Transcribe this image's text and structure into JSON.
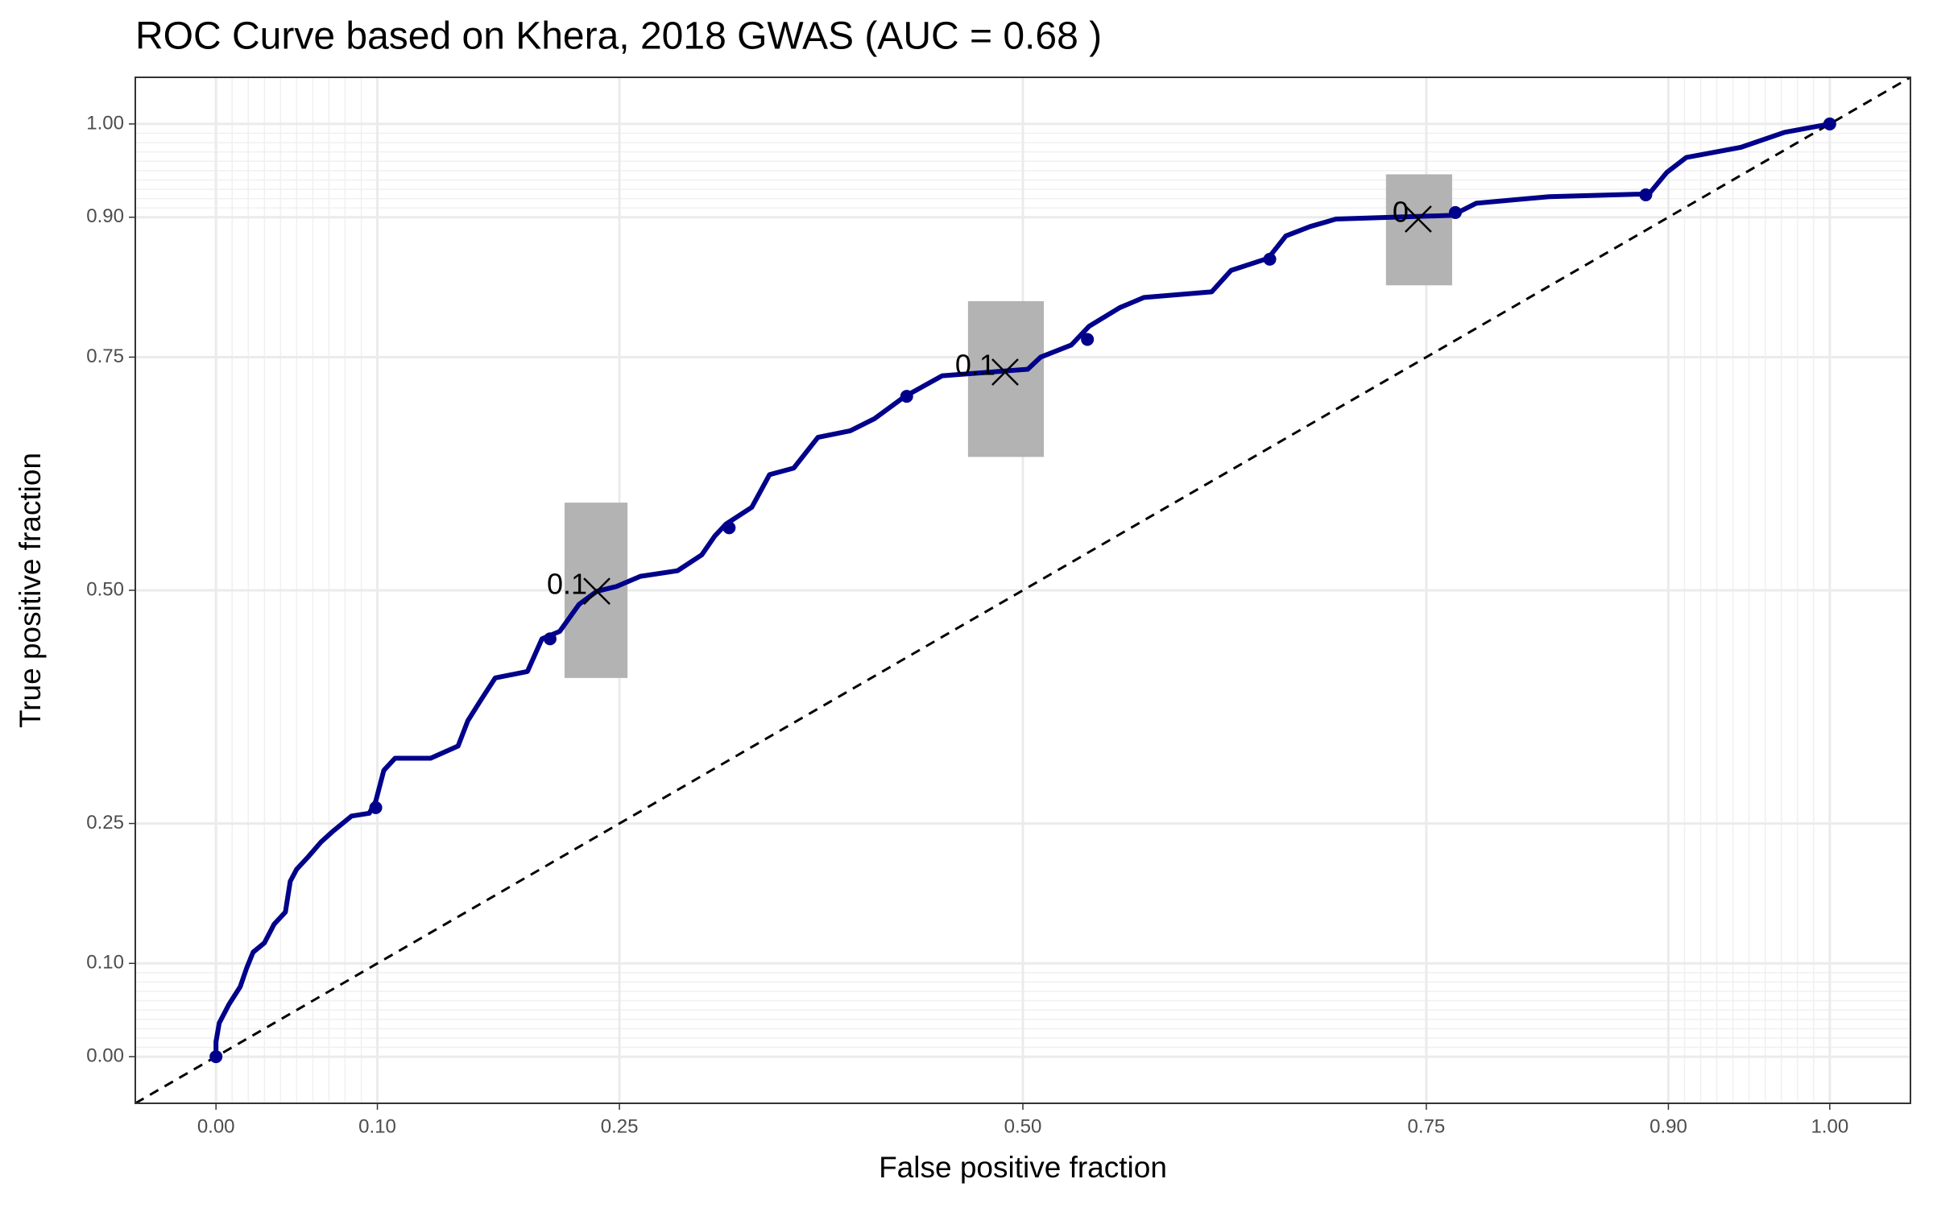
{
  "chart_data": {
    "type": "roc",
    "title": "ROC Curve based on Khera, 2018 GWAS (AUC = 0.68 )",
    "x_label": "False positive fraction",
    "y_label": "True positive fraction",
    "xlim": [
      -0.05,
      1.05
    ],
    "ylim": [
      -0.05,
      1.05
    ],
    "xticks": [
      {
        "value": 0,
        "label": "0.00"
      },
      {
        "value": 0.1,
        "label": "0.10"
      },
      {
        "value": 0.25,
        "label": "0.25"
      },
      {
        "value": 0.5,
        "label": "0.50"
      },
      {
        "value": 0.75,
        "label": "0.75"
      },
      {
        "value": 0.9,
        "label": "0.90"
      },
      {
        "value": 1,
        "label": "1.00"
      }
    ],
    "yticks": [
      {
        "value": 0,
        "label": "0.00"
      },
      {
        "value": 0.1,
        "label": "0.10"
      },
      {
        "value": 0.25,
        "label": "0.25"
      },
      {
        "value": 0.5,
        "label": "0.50"
      },
      {
        "value": 0.75,
        "label": "0.75"
      },
      {
        "value": 0.9,
        "label": "0.90"
      },
      {
        "value": 1,
        "label": "1.00"
      }
    ],
    "minor_breaks": [
      0.01,
      0.02,
      0.03,
      0.04,
      0.05,
      0.06,
      0.07,
      0.08,
      0.09,
      0.91,
      0.92,
      0.93,
      0.94,
      0.95,
      0.96,
      0.97,
      0.98,
      0.99
    ],
    "grid": true,
    "diagonal": true,
    "series": [
      {
        "color": "#00008b",
        "x": [
          0,
          0,
          0.002,
          0.008,
          0.015,
          0.019,
          0.023,
          0.03,
          0.036,
          0.043,
          0.046,
          0.05,
          0.057,
          0.065,
          0.072,
          0.084,
          0.095,
          0.099,
          0.104,
          0.111,
          0.133,
          0.15,
          0.156,
          0.164,
          0.173,
          0.193,
          0.202,
          0.213,
          0.225,
          0.236,
          0.248,
          0.263,
          0.286,
          0.301,
          0.309,
          0.316,
          0.332,
          0.343,
          0.358,
          0.373,
          0.393,
          0.408,
          0.427,
          0.45,
          0.503,
          0.511,
          0.53,
          0.541,
          0.56,
          0.575,
          0.617,
          0.629,
          0.652,
          0.663,
          0.678,
          0.694,
          0.766,
          0.781,
          0.826,
          0.888,
          0.899,
          0.911,
          0.945,
          0.972,
          1
        ],
        "values": [
          0,
          0.016,
          0.036,
          0.056,
          0.075,
          0.095,
          0.112,
          0.122,
          0.142,
          0.155,
          0.188,
          0.201,
          0.214,
          0.23,
          0.241,
          0.258,
          0.261,
          0.274,
          0.307,
          0.32,
          0.32,
          0.333,
          0.36,
          0.382,
          0.406,
          0.413,
          0.448,
          0.456,
          0.485,
          0.499,
          0.504,
          0.515,
          0.521,
          0.538,
          0.558,
          0.571,
          0.589,
          0.624,
          0.631,
          0.664,
          0.671,
          0.684,
          0.708,
          0.73,
          0.737,
          0.75,
          0.763,
          0.783,
          0.803,
          0.814,
          0.82,
          0.843,
          0.856,
          0.88,
          0.89,
          0.898,
          0.902,
          0.915,
          0.922,
          0.925,
          0.948,
          0.964,
          0.975,
          0.991,
          1
        ]
      }
    ],
    "points": {
      "x": [
        0,
        0.099,
        0.207,
        0.318,
        0.428,
        0.54,
        0.653,
        0.768,
        0.886,
        1
      ],
      "values": [
        0,
        0.267,
        0.448,
        0.567,
        0.708,
        0.769,
        0.855,
        0.905,
        0.924,
        1
      ]
    },
    "cutoffs": [
      {
        "label": "0.1",
        "x": 0.236,
        "y": 0.499,
        "xmin": 0.216,
        "xmax": 0.255,
        "ymin": 0.406,
        "ymax": 0.594
      },
      {
        "label": "0.1",
        "x": 0.489,
        "y": 0.734,
        "xmin": 0.466,
        "xmax": 0.513,
        "ymin": 0.643,
        "ymax": 0.81
      },
      {
        "label": "0",
        "x": 0.745,
        "y": 0.898,
        "xmin": 0.725,
        "xmax": 0.766,
        "ymin": 0.827,
        "ymax": 0.946
      }
    ]
  }
}
